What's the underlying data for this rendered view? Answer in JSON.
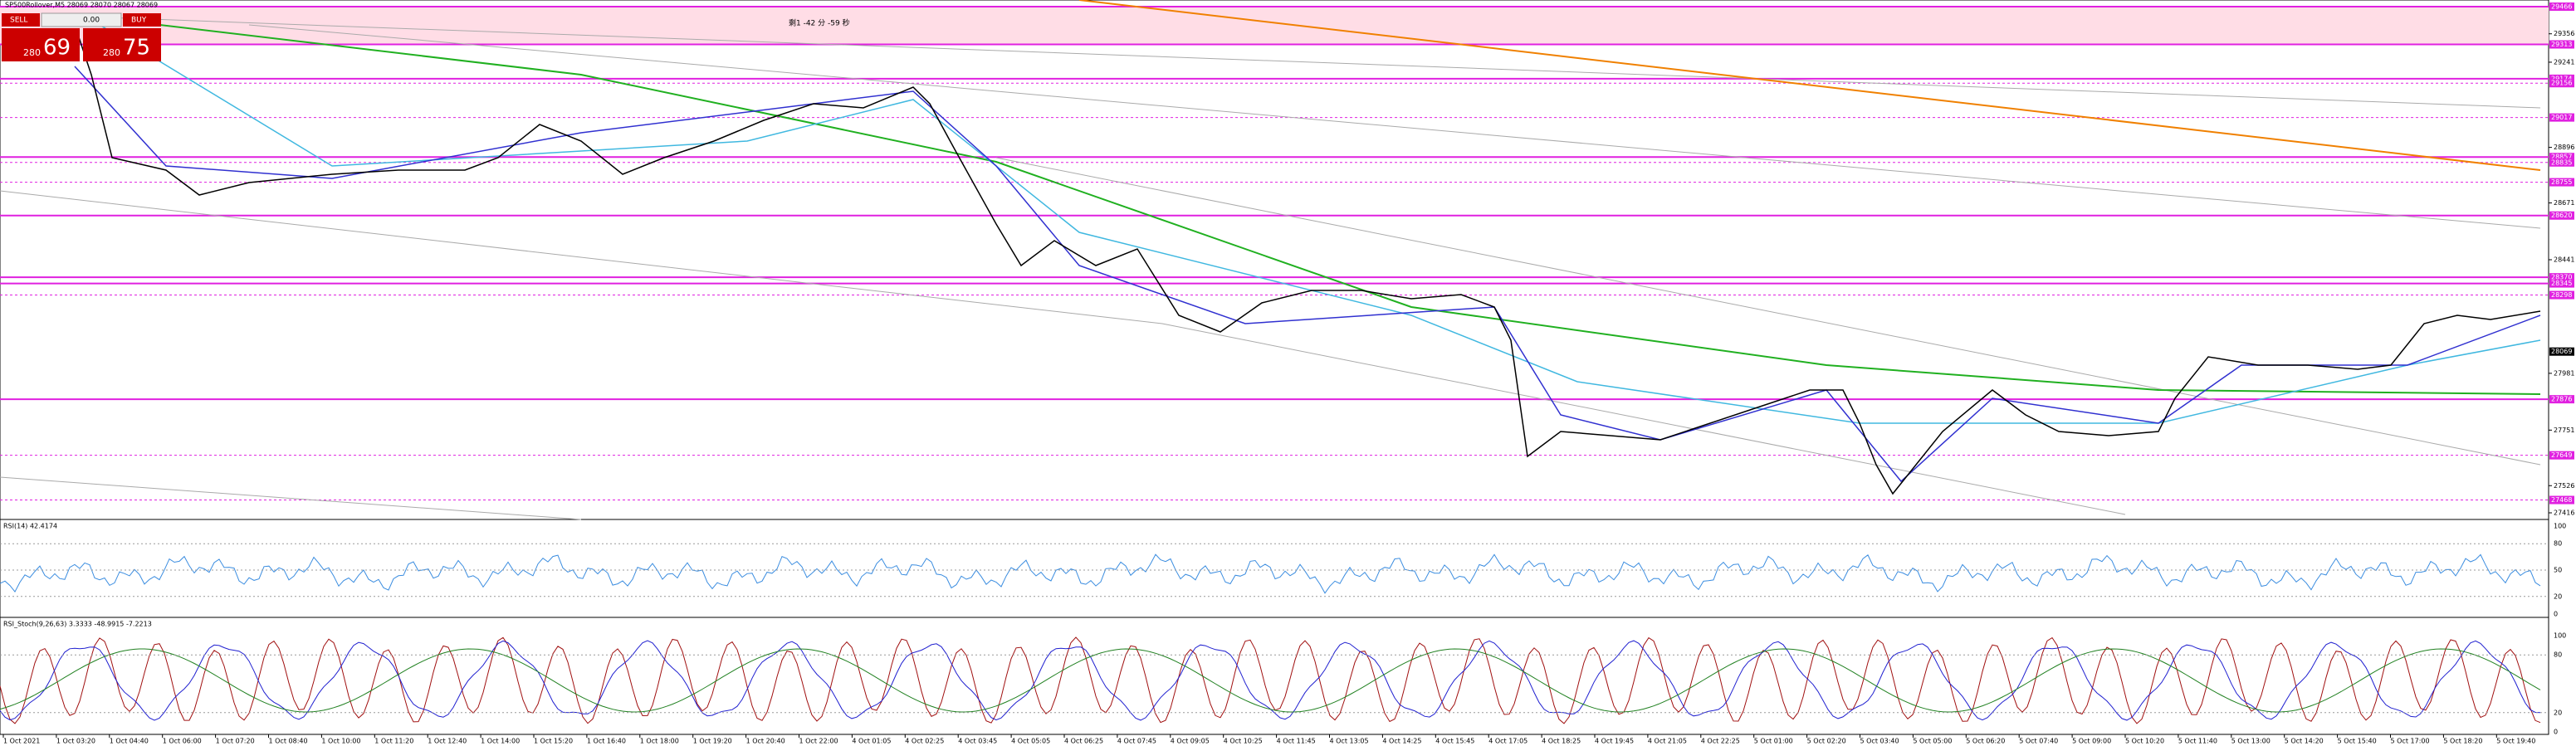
{
  "header": {
    "symbol": "SP500Rollover,M5 28069 28070 28067 28069",
    "countdown": "剩1 -42 分 -59 秒"
  },
  "trade_panel": {
    "sell": "SELL",
    "lots": "0.00",
    "buy": "BUY",
    "sell_big": "280",
    "sell_small": "69",
    "buy_big": "280",
    "buy_small": "75"
  },
  "price_axis": {
    "labels": [
      29356,
      29241,
      28896,
      28671,
      28441,
      27981,
      27751,
      27526,
      27416
    ],
    "current": 28069
  },
  "levels": [
    {
      "value": 29466,
      "style": "solid"
    },
    {
      "value": 29313,
      "style": "solid"
    },
    {
      "value": 29174,
      "style": "solid"
    },
    {
      "value": 29156,
      "style": "dashed"
    },
    {
      "value": 29017,
      "style": "dashed"
    },
    {
      "value": 28857,
      "style": "solid"
    },
    {
      "value": 28835,
      "style": "dashed"
    },
    {
      "value": 28755,
      "style": "dashed"
    },
    {
      "value": 28620,
      "style": "solid"
    },
    {
      "value": 28370,
      "style": "solid"
    },
    {
      "value": 28345,
      "style": "solid"
    },
    {
      "value": 28298,
      "style": "dashed"
    },
    {
      "value": 27876,
      "style": "solid"
    },
    {
      "value": 27649,
      "style": "dashed"
    },
    {
      "value": 27468,
      "style": "dashed"
    }
  ],
  "rsi": {
    "label": "RSI(14) 42.4174",
    "axis": [
      100,
      80,
      50,
      20,
      0
    ]
  },
  "stoch": {
    "label": "RSI_Stoch(9,26,63) 3.3333 -48.9915 -7.2213",
    "axis": [
      100,
      80,
      20,
      0
    ]
  },
  "time_axis": [
    "1 Oct 2021",
    "1 Oct 03:20",
    "1 Oct 04:40",
    "1 Oct 06:00",
    "1 Oct 07:20",
    "1 Oct 08:40",
    "1 Oct 10:00",
    "1 Oct 11:20",
    "1 Oct 12:40",
    "1 Oct 14:00",
    "1 Oct 15:20",
    "1 Oct 16:40",
    "1 Oct 18:00",
    "1 Oct 19:20",
    "1 Oct 20:40",
    "1 Oct 22:00",
    "4 Oct 01:05",
    "4 Oct 02:25",
    "4 Oct 03:45",
    "4 Oct 05:05",
    "4 Oct 06:25",
    "4 Oct 07:45",
    "4 Oct 09:05",
    "4 Oct 10:25",
    "4 Oct 11:45",
    "4 Oct 13:05",
    "4 Oct 14:25",
    "4 Oct 15:45",
    "4 Oct 17:05",
    "4 Oct 18:25",
    "4 Oct 19:45",
    "4 Oct 21:05",
    "4 Oct 22:25",
    "5 Oct 01:00",
    "5 Oct 02:20",
    "5 Oct 03:40",
    "5 Oct 05:00",
    "5 Oct 06:20",
    "5 Oct 07:40",
    "5 Oct 09:00",
    "5 Oct 10:20",
    "5 Oct 11:40",
    "5 Oct 13:00",
    "5 Oct 14:20",
    "5 Oct 15:40",
    "5 Oct 17:00",
    "5 Oct 18:20",
    "5 Oct 19:40"
  ]
}
